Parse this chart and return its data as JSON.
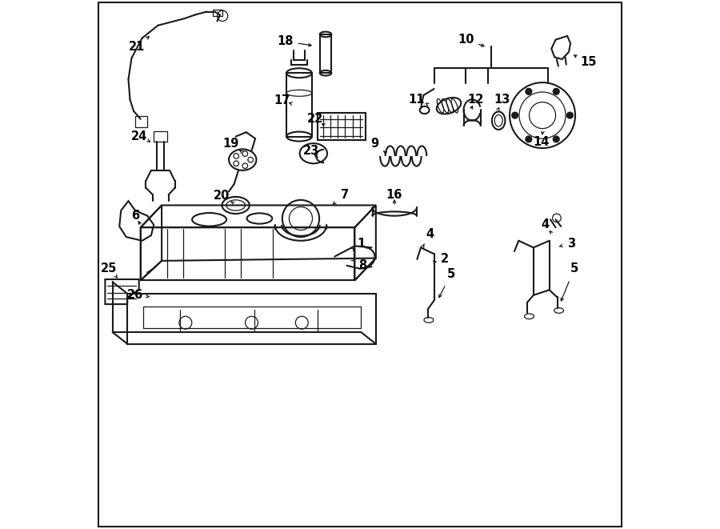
{
  "title": "",
  "bg_color": "#ffffff",
  "line_color": "#1a1a1a",
  "text_color": "#000000",
  "fig_width": 9.0,
  "fig_height": 6.61,
  "dpi": 100,
  "border": [
    0.01,
    0.01,
    0.99,
    0.99
  ]
}
